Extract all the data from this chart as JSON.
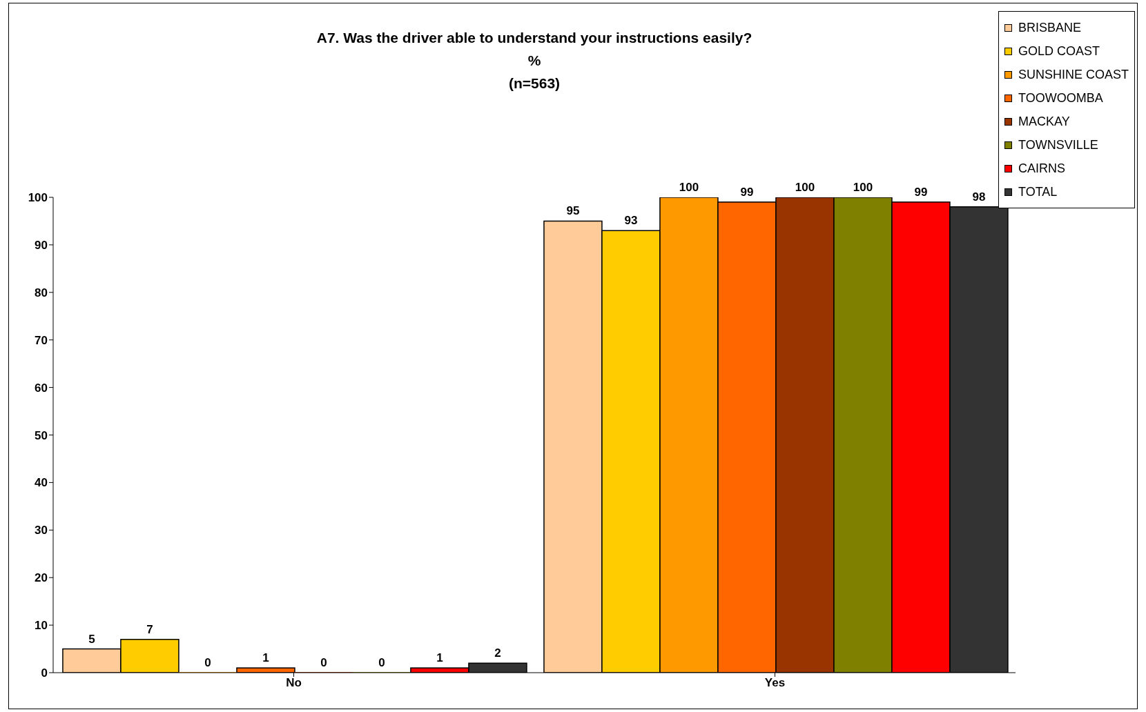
{
  "chart_data": {
    "type": "bar",
    "title": "A7. Was the driver able to understand your instructions easily?",
    "subtitle": "%",
    "annotations": [
      "(n=563)"
    ],
    "categories": [
      "No",
      "Yes"
    ],
    "series": [
      {
        "name": "BRISBANE",
        "color": "#ffcc99",
        "values": [
          5,
          95
        ]
      },
      {
        "name": "GOLD COAST",
        "color": "#ffcc00",
        "values": [
          7,
          93
        ]
      },
      {
        "name": "SUNSHINE COAST",
        "color": "#ff9900",
        "values": [
          0,
          100
        ]
      },
      {
        "name": "TOOWOOMBA",
        "color": "#ff6600",
        "values": [
          1,
          99
        ]
      },
      {
        "name": "MACKAY",
        "color": "#993300",
        "values": [
          0,
          100
        ]
      },
      {
        "name": "TOWNSVILLE",
        "color": "#808000",
        "values": [
          0,
          100
        ]
      },
      {
        "name": "CAIRNS",
        "color": "#ff0000",
        "values": [
          1,
          99
        ]
      },
      {
        "name": "TOTAL",
        "color": "#333333",
        "values": [
          2,
          98
        ]
      }
    ],
    "ylim": [
      0,
      100
    ],
    "yticks": [
      0,
      10,
      20,
      30,
      40,
      50,
      60,
      70,
      80,
      90,
      100
    ],
    "grid": false,
    "legend": "top right",
    "data_labels": true
  }
}
